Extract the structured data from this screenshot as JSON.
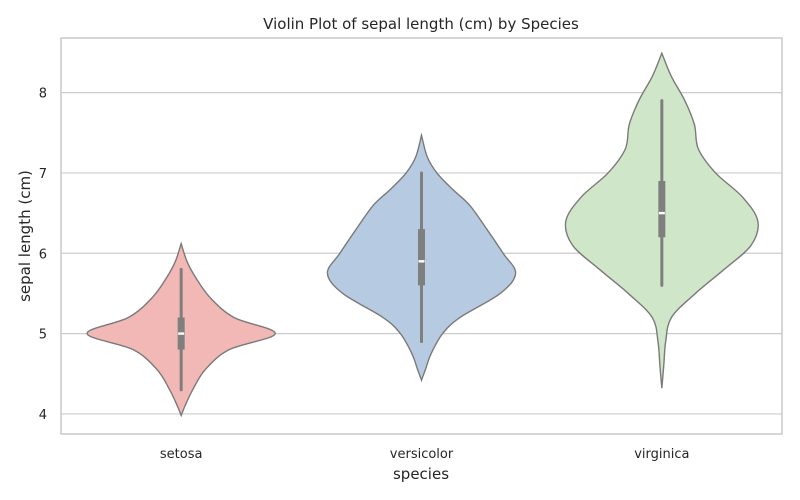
{
  "chart_data": {
    "type": "violin",
    "title": "Violin Plot of sepal length (cm) by Species",
    "xlabel": "species",
    "ylabel": "sepal length (cm)",
    "categories": [
      "setosa",
      "versicolor",
      "virginica"
    ],
    "ylim": [
      3.75,
      8.68
    ],
    "yticks": [
      4,
      5,
      6,
      7,
      8
    ],
    "grid": true,
    "colors": [
      "#f2b8b5",
      "#b6cbe1",
      "#cfe6c8"
    ],
    "violins": [
      {
        "category": "setosa",
        "min": 4.3,
        "q1": 4.8,
        "median": 5.0,
        "q3": 5.2,
        "max": 5.8,
        "density": [
          [
            3.98,
            0
          ],
          [
            4.1,
            0.04
          ],
          [
            4.3,
            0.12
          ],
          [
            4.55,
            0.25
          ],
          [
            4.8,
            0.5
          ],
          [
            5.0,
            0.98
          ],
          [
            5.2,
            0.55
          ],
          [
            5.45,
            0.3
          ],
          [
            5.7,
            0.15
          ],
          [
            5.9,
            0.06
          ],
          [
            6.12,
            0
          ]
        ]
      },
      {
        "category": "versicolor",
        "min": 4.9,
        "q1": 5.6,
        "median": 5.9,
        "q3": 6.3,
        "max": 7.0,
        "density": [
          [
            4.42,
            0
          ],
          [
            4.55,
            0.04
          ],
          [
            4.75,
            0.1
          ],
          [
            5.0,
            0.22
          ],
          [
            5.2,
            0.4
          ],
          [
            5.5,
            0.82
          ],
          [
            5.75,
            0.98
          ],
          [
            6.0,
            0.85
          ],
          [
            6.3,
            0.68
          ],
          [
            6.6,
            0.5
          ],
          [
            6.8,
            0.32
          ],
          [
            7.0,
            0.16
          ],
          [
            7.2,
            0.06
          ],
          [
            7.47,
            0
          ]
        ]
      },
      {
        "category": "virginica",
        "min": 5.6,
        "q1": 6.2,
        "median": 6.5,
        "q3": 6.9,
        "max": 7.9,
        "density": [
          [
            4.32,
            0
          ],
          [
            4.6,
            0.02
          ],
          [
            4.9,
            0.04
          ],
          [
            5.2,
            0.1
          ],
          [
            5.5,
            0.35
          ],
          [
            5.8,
            0.65
          ],
          [
            6.1,
            0.93
          ],
          [
            6.4,
            1.0
          ],
          [
            6.7,
            0.84
          ],
          [
            7.0,
            0.56
          ],
          [
            7.3,
            0.38
          ],
          [
            7.6,
            0.34
          ],
          [
            7.9,
            0.24
          ],
          [
            8.2,
            0.1
          ],
          [
            8.49,
            0
          ]
        ]
      }
    ]
  }
}
